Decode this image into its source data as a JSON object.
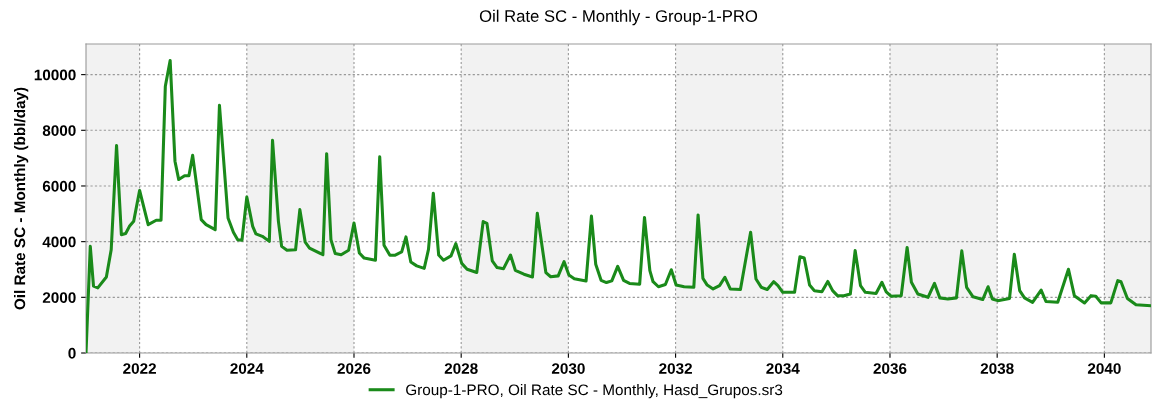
{
  "chart_data": {
    "type": "line",
    "title": "Oil Rate SC - Monthly - Group-1-PRO",
    "ylabel": "Oil Rate SC - Monthly (bbl/day)",
    "xlim": [
      2021.0,
      2040.87
    ],
    "ylim": [
      0,
      11100
    ],
    "xticks": [
      2022,
      2024,
      2026,
      2028,
      2030,
      2032,
      2034,
      2036,
      2038,
      2040
    ],
    "yticks": [
      0,
      2000,
      4000,
      6000,
      8000,
      10000
    ],
    "grid": true,
    "legend": "bottom",
    "marker": "none",
    "line_style": "solid",
    "bands": [
      {
        "axis": "x",
        "from": 2021.0,
        "to": 2022.0,
        "color": "#f2f2f2"
      },
      {
        "axis": "x",
        "from": 2024.0,
        "to": 2026.0,
        "color": "#f2f2f2"
      },
      {
        "axis": "x",
        "from": 2028.0,
        "to": 2030.0,
        "color": "#f2f2f2"
      },
      {
        "axis": "x",
        "from": 2032.0,
        "to": 2034.0,
        "color": "#f2f2f2"
      },
      {
        "axis": "x",
        "from": 2036.0,
        "to": 2038.0,
        "color": "#f2f2f2"
      },
      {
        "axis": "x",
        "from": 2040.0,
        "to": 2040.87,
        "color": "#f2f2f2"
      }
    ],
    "series": [
      {
        "name": "Group-1-PRO, Oil Rate SC - Monthly, Hasd_Grupos.sr3",
        "color": "#1a8a1a",
        "x": [
          2021.0,
          2021.08,
          2021.14,
          2021.22,
          2021.38,
          2021.47,
          2021.57,
          2021.66,
          2021.74,
          2021.81,
          2021.89,
          2022.0,
          2022.16,
          2022.31,
          2022.4,
          2022.48,
          2022.57,
          2022.66,
          2022.73,
          2022.84,
          2022.92,
          2022.99,
          2023.15,
          2023.24,
          2023.41,
          2023.49,
          2023.65,
          2023.75,
          2023.83,
          2023.91,
          2024.0,
          2024.11,
          2024.17,
          2024.29,
          2024.42,
          2024.48,
          2024.59,
          2024.65,
          2024.75,
          2024.91,
          2024.99,
          2025.09,
          2025.17,
          2025.42,
          2025.49,
          2025.57,
          2025.65,
          2025.76,
          2025.9,
          2026.0,
          2026.1,
          2026.19,
          2026.4,
          2026.48,
          2026.56,
          2026.67,
          2026.76,
          2026.89,
          2026.97,
          2027.06,
          2027.17,
          2027.31,
          2027.39,
          2027.48,
          2027.58,
          2027.67,
          2027.81,
          2027.9,
          2028.01,
          2028.11,
          2028.29,
          2028.41,
          2028.48,
          2028.58,
          2028.67,
          2028.79,
          2028.92,
          2029.01,
          2029.17,
          2029.33,
          2029.42,
          2029.58,
          2029.67,
          2029.81,
          2029.92,
          2030.01,
          2030.11,
          2030.33,
          2030.43,
          2030.51,
          2030.61,
          2030.71,
          2030.81,
          2030.92,
          2031.03,
          2031.14,
          2031.33,
          2031.42,
          2031.52,
          2031.58,
          2031.68,
          2031.81,
          2031.92,
          2032.01,
          2032.16,
          2032.34,
          2032.42,
          2032.51,
          2032.59,
          2032.7,
          2032.82,
          2032.92,
          2033.02,
          2033.21,
          2033.3,
          2033.4,
          2033.5,
          2033.6,
          2033.71,
          2033.83,
          2033.91,
          2034.0,
          2034.22,
          2034.32,
          2034.4,
          2034.5,
          2034.59,
          2034.73,
          2034.84,
          2034.93,
          2035.02,
          2035.14,
          2035.26,
          2035.35,
          2035.45,
          2035.54,
          2035.74,
          2035.85,
          2035.93,
          2036.02,
          2036.21,
          2036.32,
          2036.4,
          2036.52,
          2036.71,
          2036.83,
          2036.93,
          2037.08,
          2037.24,
          2037.34,
          2037.43,
          2037.55,
          2037.73,
          2037.83,
          2037.91,
          2038.01,
          2038.23,
          2038.32,
          2038.42,
          2038.51,
          2038.66,
          2038.82,
          2038.91,
          2039.13,
          2039.33,
          2039.44,
          2039.63,
          2039.75,
          2039.84,
          2039.94,
          2040.12,
          2040.25,
          2040.31,
          2040.43,
          2040.59,
          2040.86
        ],
        "values": [
          0,
          3830,
          2400,
          2340,
          2730,
          3710,
          7450,
          4250,
          4290,
          4550,
          4730,
          5840,
          4610,
          4770,
          4770,
          9580,
          10510,
          6890,
          6230,
          6370,
          6370,
          7100,
          4790,
          4610,
          4430,
          8900,
          4850,
          4340,
          4070,
          4050,
          5600,
          4550,
          4280,
          4190,
          4010,
          7640,
          4730,
          3830,
          3690,
          3710,
          5150,
          3980,
          3770,
          3530,
          7160,
          4070,
          3570,
          3530,
          3690,
          4670,
          3590,
          3410,
          3330,
          7050,
          3870,
          3510,
          3510,
          3630,
          4170,
          3270,
          3130,
          3040,
          3720,
          5740,
          3520,
          3330,
          3490,
          3930,
          3220,
          3010,
          2890,
          4720,
          4660,
          3310,
          3070,
          3030,
          3520,
          2970,
          2830,
          2730,
          5020,
          2890,
          2740,
          2770,
          3280,
          2800,
          2670,
          2590,
          4920,
          3190,
          2610,
          2530,
          2590,
          3110,
          2610,
          2500,
          2470,
          4870,
          2960,
          2560,
          2380,
          2460,
          2990,
          2440,
          2380,
          2360,
          4960,
          2680,
          2440,
          2300,
          2420,
          2720,
          2300,
          2280,
          3260,
          4340,
          2660,
          2360,
          2280,
          2560,
          2420,
          2180,
          2180,
          3460,
          3410,
          2440,
          2240,
          2200,
          2570,
          2240,
          2060,
          2060,
          2120,
          3680,
          2420,
          2180,
          2140,
          2540,
          2200,
          2040,
          2060,
          3790,
          2540,
          2120,
          2000,
          2500,
          1980,
          1940,
          1980,
          3670,
          2360,
          2020,
          1920,
          2380,
          1940,
          1880,
          1960,
          3550,
          2240,
          1980,
          1820,
          2260,
          1850,
          1820,
          3010,
          2060,
          1800,
          2060,
          2040,
          1800,
          1800,
          2600,
          2560,
          1960,
          1730,
          1700
        ]
      }
    ]
  }
}
